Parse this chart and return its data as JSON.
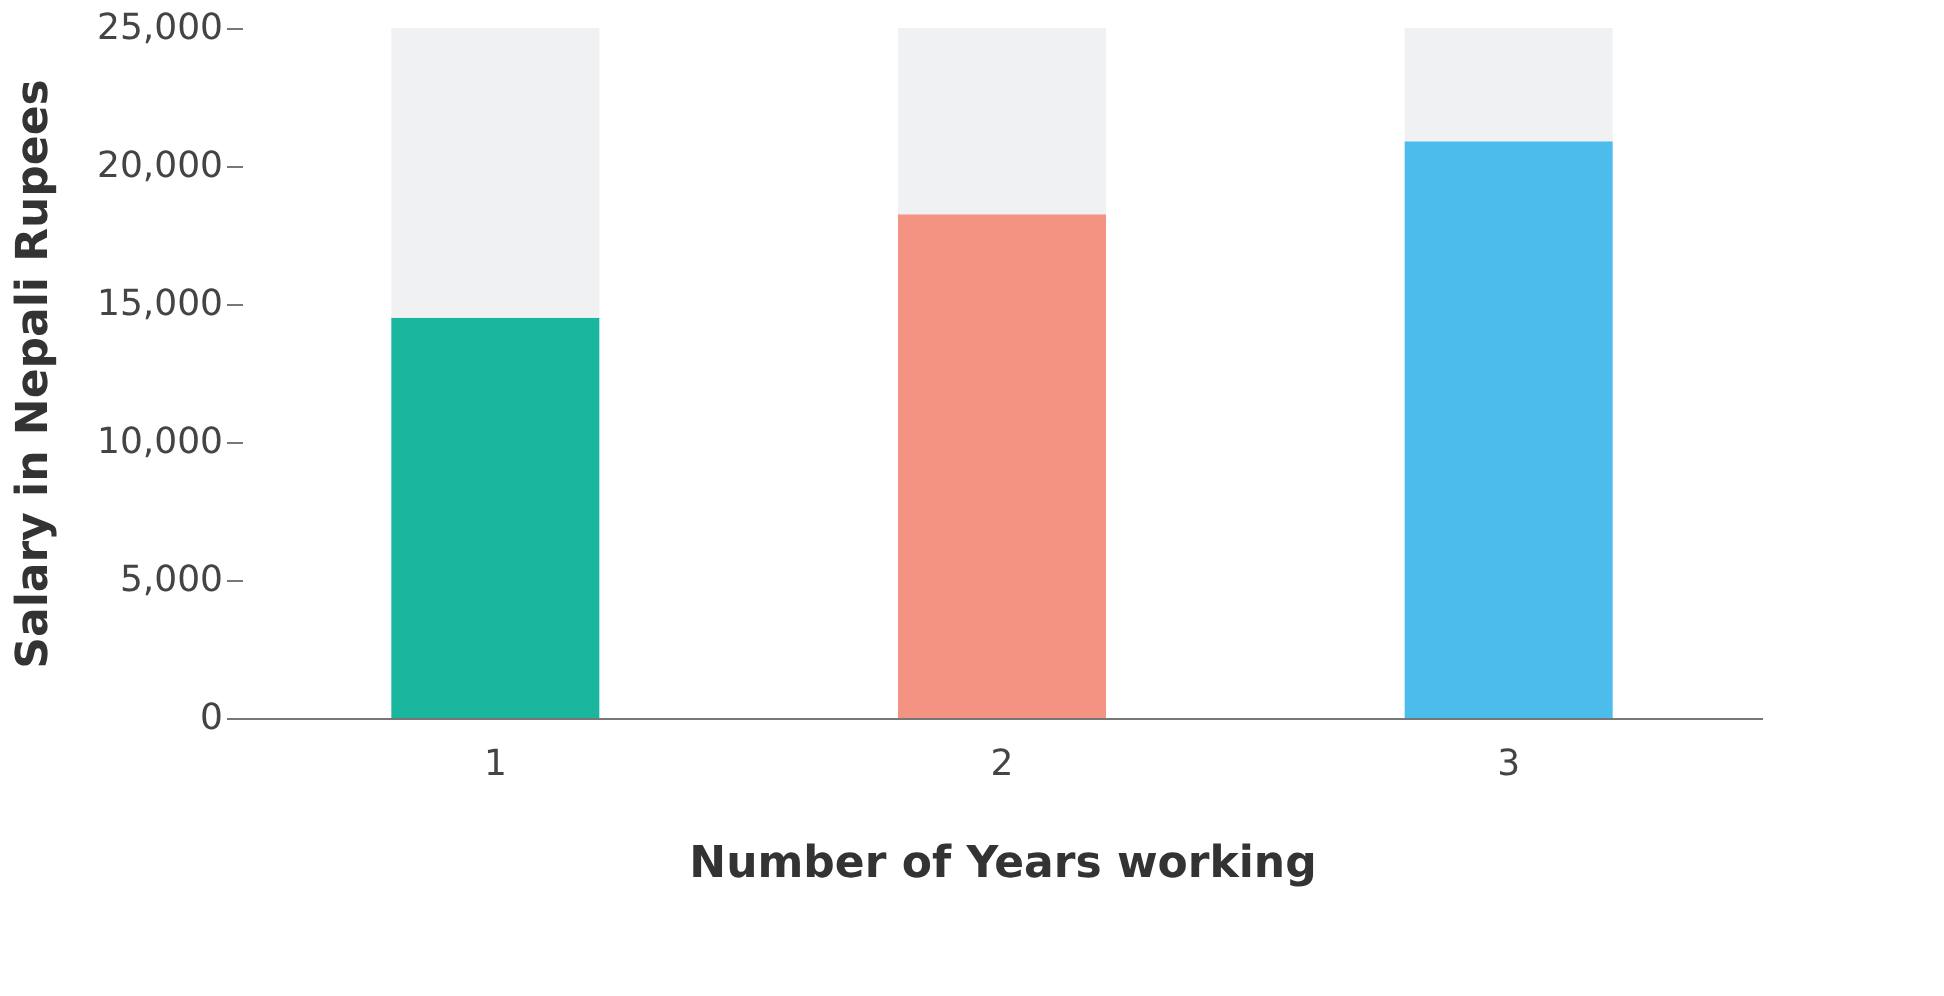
{
  "chart_data": {
    "type": "bar",
    "stacked": true,
    "xlabel": "Number of Years working",
    "ylabel": "Salary in Nepali Rupees",
    "categories": [
      "1",
      "2",
      "3"
    ],
    "series": [
      {
        "colors": [
          "#19b59c",
          "#f59383",
          "#4bbcec"
        ],
        "values": [
          14500,
          18250,
          20900
        ]
      },
      {
        "color": "#f0f1f3",
        "values": [
          10500,
          6750,
          4100
        ]
      }
    ],
    "ylim": [
      0,
      25000
    ],
    "yticks": [
      {
        "value": 0,
        "label": "0"
      },
      {
        "value": 5000,
        "label": "5,000"
      },
      {
        "value": 10000,
        "label": "10,000"
      },
      {
        "value": 15000,
        "label": "15,000"
      },
      {
        "value": 20000,
        "label": "20,000"
      },
      {
        "value": 25000,
        "label": "25,000"
      }
    ],
    "grid": false
  }
}
